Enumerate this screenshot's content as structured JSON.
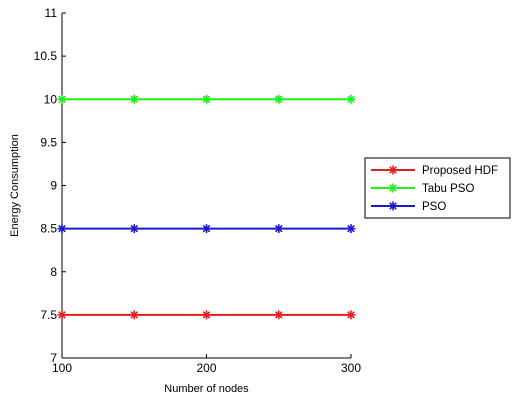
{
  "chart_data": {
    "type": "line",
    "title": "",
    "xlabel": "Number of nodes",
    "ylabel": "Energy Consumption",
    "x": [
      100,
      150,
      200,
      250,
      300
    ],
    "xlim": [
      100,
      300
    ],
    "ylim": [
      7,
      11
    ],
    "xticks": [
      100,
      200,
      300
    ],
    "xtick_labels": [
      "100",
      "200",
      "300"
    ],
    "yticks": [
      7,
      7.5,
      8,
      8.5,
      9,
      9.5,
      10,
      10.5,
      11
    ],
    "ytick_labels": [
      "7",
      "7.5",
      "8",
      "8.5",
      "9",
      "9.5",
      "10",
      "10.5",
      "11"
    ],
    "grid": false,
    "legend_position": "right",
    "marker": "asterisk",
    "series": [
      {
        "name": "Proposed HDF",
        "color": "#e02020",
        "values": [
          7.5,
          7.5,
          7.5,
          7.5,
          7.5
        ]
      },
      {
        "name": "Tabu PSO",
        "color": "#22ee22",
        "values": [
          10,
          10,
          10,
          10,
          10
        ]
      },
      {
        "name": "PSO",
        "color": "#1a1acc",
        "values": [
          8.5,
          8.5,
          8.5,
          8.5,
          8.5
        ]
      }
    ]
  }
}
